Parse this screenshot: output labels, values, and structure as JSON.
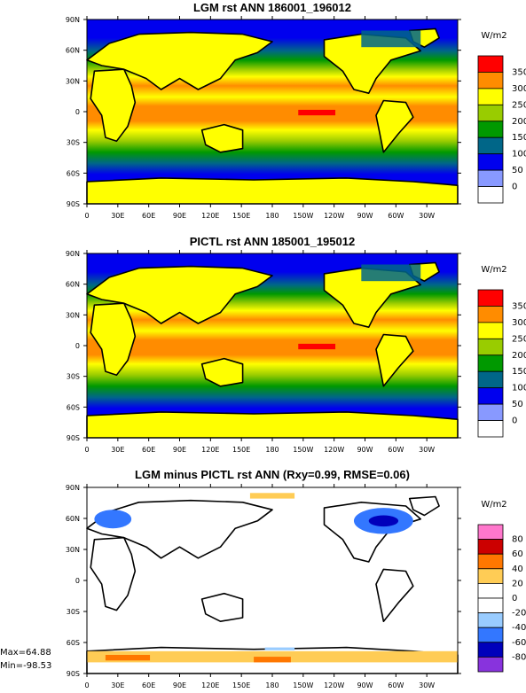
{
  "chart_data": [
    {
      "type": "heatmap",
      "title": "LGM rst ANN 186001_196012",
      "x_ticks": [
        "0",
        "30E",
        "60E",
        "90E",
        "120E",
        "150E",
        "180",
        "150W",
        "120W",
        "90W",
        "60W",
        "30W"
      ],
      "y_ticks": [
        "90N",
        "60N",
        "30N",
        "0",
        "30S",
        "60S",
        "90S"
      ],
      "colorbar": {
        "unit": "W/m2",
        "levels": [
          "350",
          "300",
          "250",
          "200",
          "150",
          "100",
          "50",
          "0"
        ],
        "colors": [
          "#ff0000",
          "#ff8c00",
          "#ffff00",
          "#99cc00",
          "#009900",
          "#006688",
          "#0000ee",
          "#8899ff",
          "#ffffff"
        ]
      }
    },
    {
      "type": "heatmap",
      "title": "PICTL rst ANN 185001_195012",
      "x_ticks": [
        "0",
        "30E",
        "60E",
        "90E",
        "120E",
        "150E",
        "180",
        "150W",
        "120W",
        "90W",
        "60W",
        "30W"
      ],
      "y_ticks": [
        "90N",
        "60N",
        "30N",
        "0",
        "30S",
        "60S",
        "90S"
      ],
      "colorbar": {
        "unit": "W/m2",
        "levels": [
          "350",
          "300",
          "250",
          "200",
          "150",
          "100",
          "50",
          "0"
        ],
        "colors": [
          "#ff0000",
          "#ff8c00",
          "#ffff00",
          "#99cc00",
          "#009900",
          "#006688",
          "#0000ee",
          "#8899ff",
          "#ffffff"
        ]
      }
    },
    {
      "type": "heatmap",
      "title": "LGM minus PICTL rst ANN (Rxy=0.99, RMSE=0.06)",
      "x_ticks": [
        "0",
        "30E",
        "60E",
        "90E",
        "120E",
        "150E",
        "180",
        "150W",
        "120W",
        "90W",
        "60W",
        "30W"
      ],
      "y_ticks": [
        "90N",
        "60N",
        "30N",
        "0",
        "30S",
        "60S",
        "90S"
      ],
      "stats": {
        "max": "Max=64.88",
        "min": "Min=-98.53"
      },
      "colorbar": {
        "unit": "W/m2",
        "levels": [
          "80",
          "60",
          "40",
          "20",
          "0",
          "-20",
          "-40",
          "-60",
          "-80"
        ],
        "colors": [
          "#ff77cc",
          "#cc0000",
          "#ff7700",
          "#ffcc55",
          "#ffffff",
          "#ffffff",
          "#99ccff",
          "#3377ff",
          "#0000bb",
          "#8833dd"
        ]
      }
    }
  ]
}
